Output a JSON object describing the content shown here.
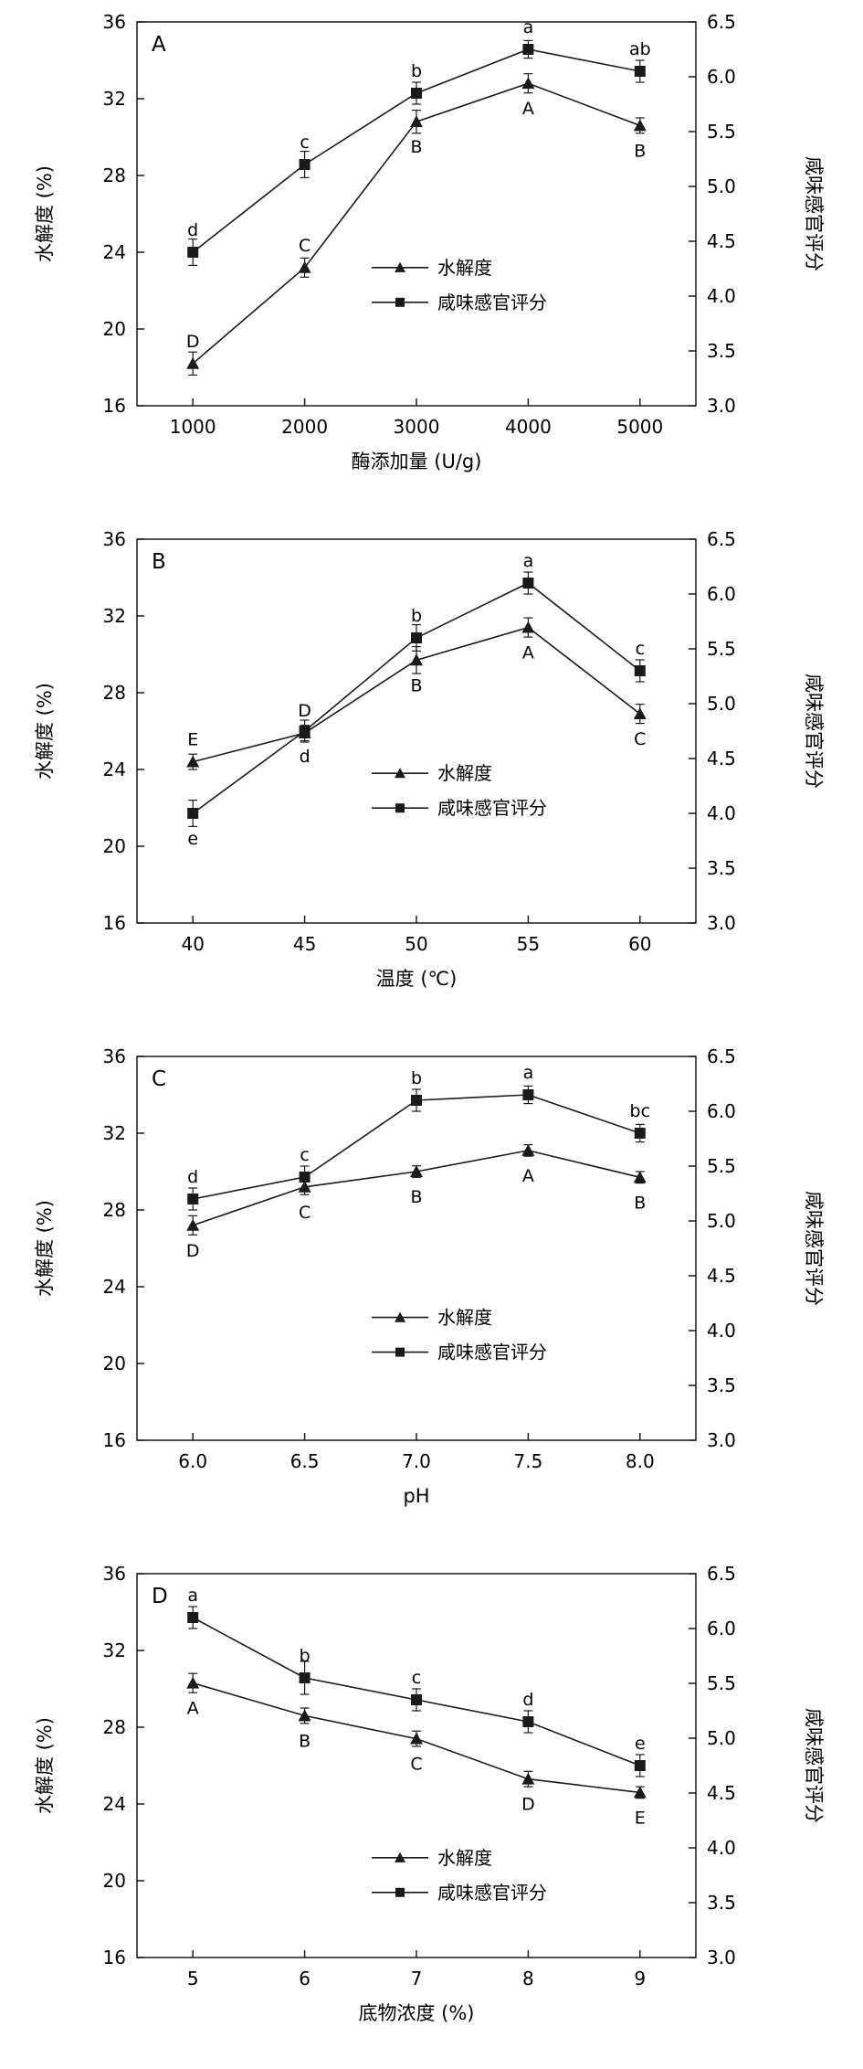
{
  "page": {
    "background": "#ffffff"
  },
  "colors": {
    "line": "#1a1a1a",
    "text": "#000000"
  },
  "axes": {
    "left_label": "水解度 (%)",
    "right_label": "咸味感官评分",
    "left_ticks": [
      "16",
      "20",
      "24",
      "28",
      "32",
      "36"
    ],
    "right_ticks": [
      "3.0",
      "3.5",
      "4.0",
      "4.5",
      "5.0",
      "5.5",
      "6.0",
      "6.5"
    ],
    "left_range": [
      16,
      36
    ],
    "right_range": [
      3.0,
      6.5
    ]
  },
  "legend": {
    "hydrolysis_label": "水解度",
    "sensory_label": "咸味感官评分"
  },
  "chart_data": [
    {
      "type": "line",
      "panel_label": "A",
      "xlabel": "酶添加量 (U/g)",
      "categories": [
        "1000",
        "2000",
        "3000",
        "4000",
        "5000"
      ],
      "legend_pos": [
        0.42,
        0.64
      ],
      "series": [
        {
          "name": "水解度",
          "axis": "left",
          "marker": "triangle",
          "values": [
            18.2,
            23.2,
            30.8,
            32.8,
            30.6
          ],
          "errors": [
            0.6,
            0.5,
            0.6,
            0.5,
            0.4
          ],
          "letters": [
            "D",
            "C",
            "B",
            "A",
            "B"
          ],
          "letter_pos": [
            "above",
            "above",
            "below",
            "below",
            "below"
          ]
        },
        {
          "name": "咸味感官评分",
          "axis": "right",
          "marker": "square",
          "values": [
            4.4,
            5.2,
            5.85,
            6.25,
            6.05
          ],
          "errors": [
            0.12,
            0.12,
            0.1,
            0.08,
            0.1
          ],
          "letters": [
            "d",
            "c",
            "b",
            "a",
            "ab"
          ],
          "letter_pos": [
            "above",
            "above",
            "above",
            "above",
            "above"
          ]
        }
      ]
    },
    {
      "type": "line",
      "panel_label": "B",
      "xlabel": "温度 (℃)",
      "categories": [
        "40",
        "45",
        "50",
        "55",
        "60"
      ],
      "legend_pos": [
        0.42,
        0.61
      ],
      "series": [
        {
          "name": "水解度",
          "axis": "left",
          "marker": "triangle",
          "values": [
            24.4,
            25.9,
            29.7,
            31.4,
            26.9
          ],
          "errors": [
            0.4,
            0.4,
            0.7,
            0.5,
            0.5
          ],
          "letters": [
            "E",
            "D",
            "B",
            "A",
            "C"
          ],
          "letter_pos": [
            "above",
            "above",
            "below",
            "below",
            "below"
          ]
        },
        {
          "name": "咸味感官评分",
          "axis": "right",
          "marker": "square",
          "values": [
            4.0,
            4.75,
            5.6,
            6.1,
            5.3
          ],
          "errors": [
            0.12,
            0.1,
            0.12,
            0.1,
            0.1
          ],
          "letters": [
            "e",
            "d",
            "b",
            "a",
            "c"
          ],
          "letter_pos": [
            "below",
            "below",
            "above",
            "above",
            "above"
          ]
        }
      ]
    },
    {
      "type": "line",
      "panel_label": "C",
      "xlabel": "pH",
      "categories": [
        "6.0",
        "6.5",
        "7.0",
        "7.5",
        "8.0"
      ],
      "legend_pos": [
        0.42,
        0.68
      ],
      "series": [
        {
          "name": "水解度",
          "axis": "left",
          "marker": "triangle",
          "values": [
            27.2,
            29.2,
            30.0,
            31.1,
            29.7
          ],
          "errors": [
            0.5,
            0.4,
            0.3,
            0.3,
            0.3
          ],
          "letters": [
            "D",
            "C",
            "B",
            "A",
            "B"
          ],
          "letter_pos": [
            "below",
            "below",
            "below",
            "below",
            "below"
          ]
        },
        {
          "name": "咸味感官评分",
          "axis": "right",
          "marker": "square",
          "values": [
            5.2,
            5.4,
            6.1,
            6.15,
            5.8
          ],
          "errors": [
            0.1,
            0.1,
            0.1,
            0.08,
            0.08
          ],
          "letters": [
            "d",
            "c",
            "b",
            "a",
            "bc"
          ],
          "letter_pos": [
            "above",
            "above",
            "above",
            "above",
            "above"
          ]
        }
      ]
    },
    {
      "type": "line",
      "panel_label": "D",
      "xlabel": "底物浓度 (%)",
      "categories": [
        "5",
        "6",
        "7",
        "8",
        "9"
      ],
      "legend_pos": [
        0.42,
        0.74
      ],
      "series": [
        {
          "name": "水解度",
          "axis": "left",
          "marker": "triangle",
          "values": [
            30.3,
            28.6,
            27.4,
            25.3,
            24.6
          ],
          "errors": [
            0.5,
            0.4,
            0.4,
            0.4,
            0.3
          ],
          "letters": [
            "A",
            "B",
            "C",
            "D",
            "E"
          ],
          "letter_pos": [
            "below",
            "below",
            "below",
            "below",
            "below"
          ]
        },
        {
          "name": "咸味感官评分",
          "axis": "right",
          "marker": "square",
          "values": [
            6.1,
            5.55,
            5.35,
            5.15,
            4.75
          ],
          "errors": [
            0.1,
            0.15,
            0.1,
            0.1,
            0.1
          ],
          "letters": [
            "a",
            "b",
            "c",
            "d",
            "e"
          ],
          "letter_pos": [
            "above",
            "above",
            "above",
            "above",
            "above"
          ]
        }
      ]
    }
  ]
}
